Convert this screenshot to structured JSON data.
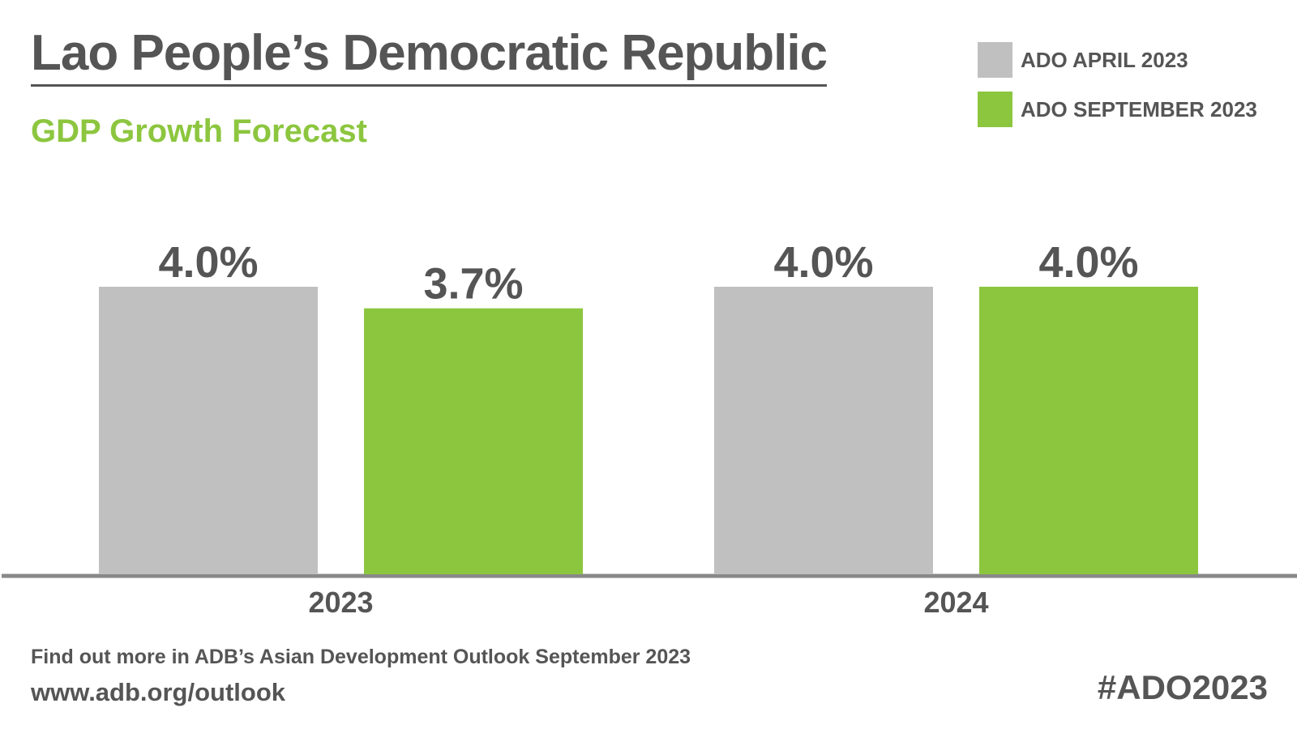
{
  "header": {
    "title": "Lao People’s Democratic Republic",
    "subtitle": "GDP Growth Forecast"
  },
  "legend": [
    {
      "label": "ADO APRIL 2023",
      "color": "#c0c0c0"
    },
    {
      "label": "ADO SEPTEMBER 2023",
      "color": "#8cc63f"
    }
  ],
  "chart_data": {
    "type": "bar",
    "title": "GDP Growth Forecast",
    "categories": [
      "2023",
      "2024"
    ],
    "series": [
      {
        "name": "ADO APRIL 2023",
        "values": [
          4.0,
          4.0
        ],
        "labels": [
          "4.0%",
          "4.0%"
        ],
        "color": "#c0c0c0"
      },
      {
        "name": "ADO SEPTEMBER 2023",
        "values": [
          3.7,
          4.0
        ],
        "labels": [
          "3.7%",
          "4.0%"
        ],
        "color": "#8cc63f"
      }
    ],
    "xlabel": "",
    "ylabel": "",
    "ylim": [
      0,
      4.0
    ],
    "grid": false,
    "legend_position": "top-right"
  },
  "footer": {
    "note": "Find out more in ADB’s Asian Development Outlook September 2023",
    "url": "www.adb.org/outlook",
    "hashtag": "#ADO2023"
  }
}
